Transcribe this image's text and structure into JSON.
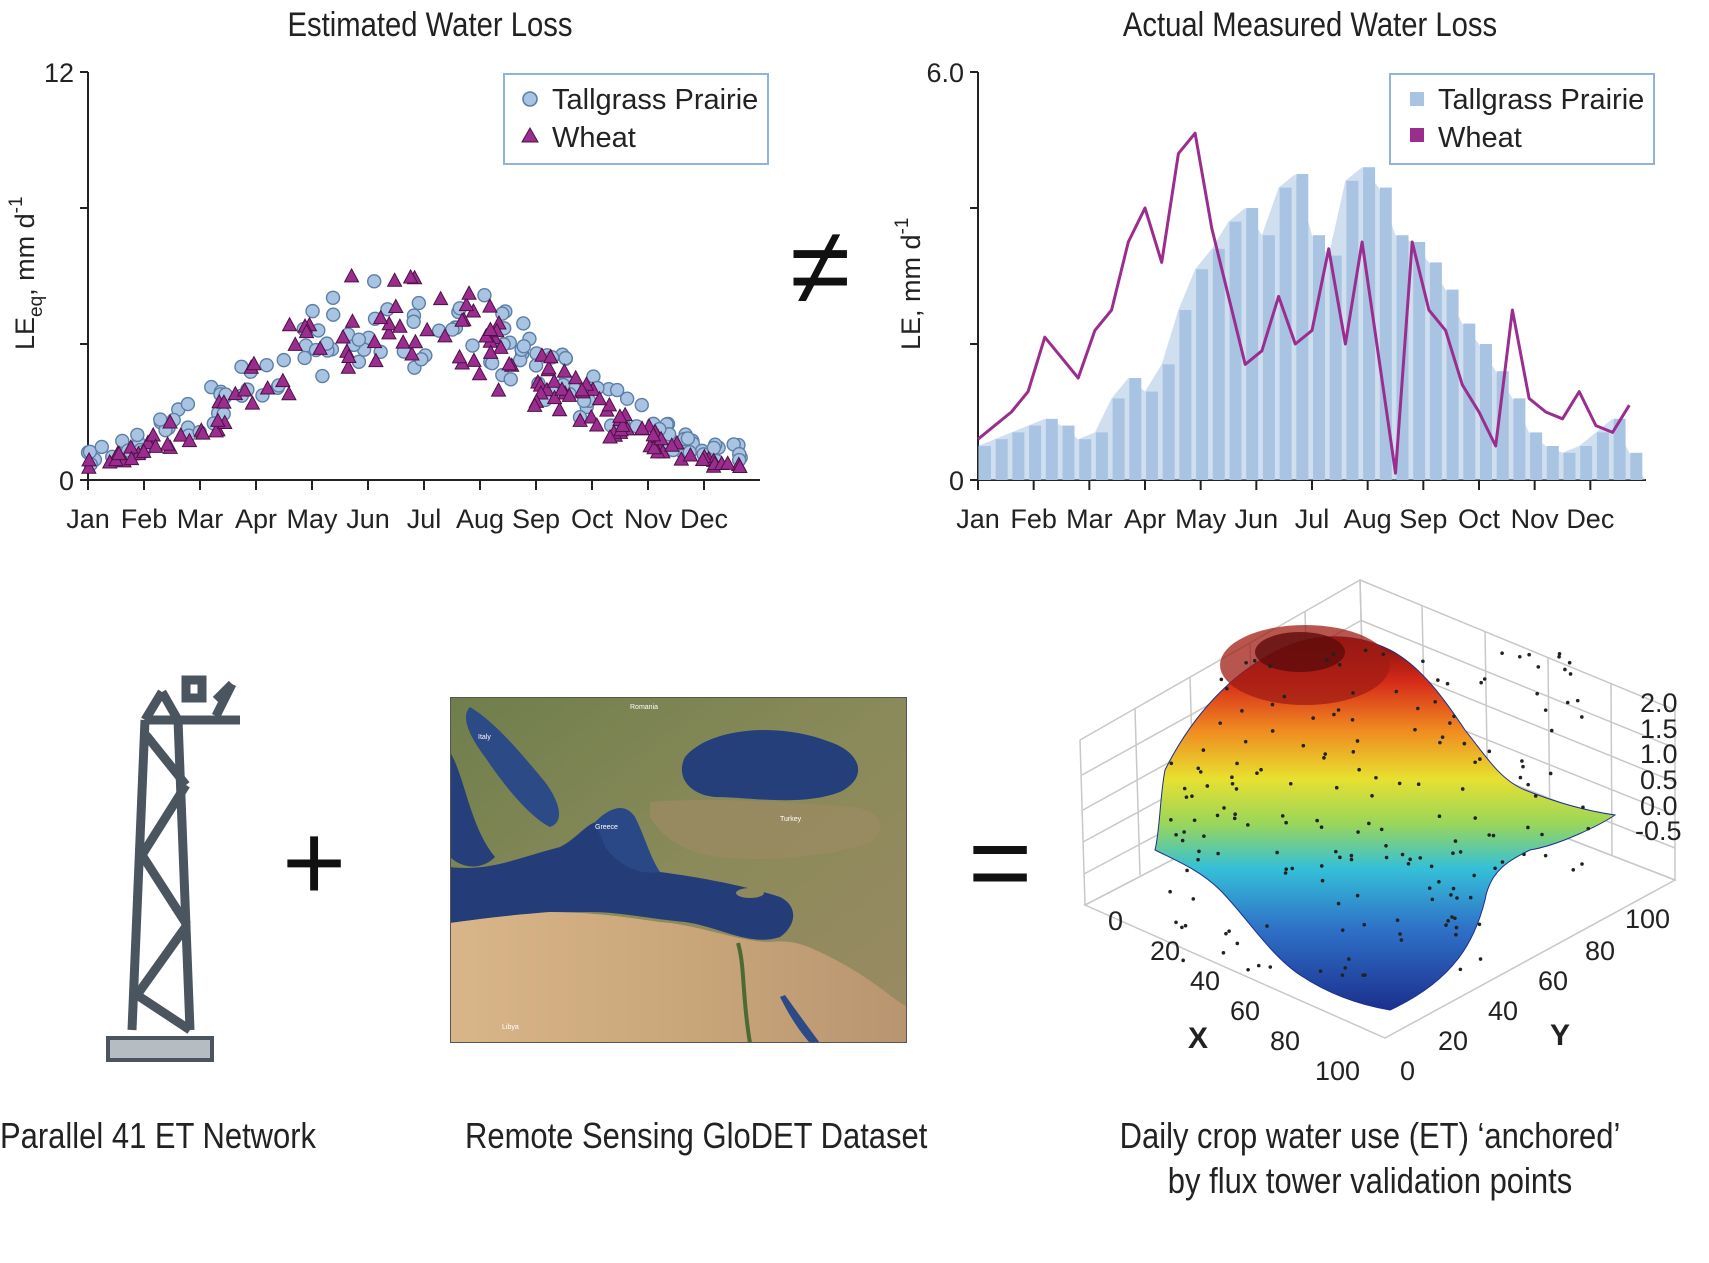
{
  "left_chart": {
    "title": "Estimated Water Loss",
    "ylabel_main": "LE",
    "ylabel_sub": "eq",
    "ylabel_rest": ", mm d",
    "ylabel_sup": "-1",
    "y_ticks": [
      "0",
      "12"
    ],
    "x_ticks": [
      "Jan",
      "Feb",
      "Mar",
      "Apr",
      "May",
      "Jun",
      "Jul",
      "Aug",
      "Sep",
      "Oct",
      "Nov",
      "Dec"
    ],
    "legend": [
      "Tallgrass Prairie",
      "Wheat"
    ]
  },
  "right_chart": {
    "title": "Actual Measured Water Loss",
    "ylabel": "LE, mm d",
    "ylabel_sup": "-1",
    "y_ticks": [
      "0",
      "6.0"
    ],
    "x_ticks": [
      "Jan",
      "Feb",
      "Mar",
      "Apr",
      "May",
      "Jun",
      "Jul",
      "Aug",
      "Sep",
      "Oct",
      "Nov",
      "Dec"
    ],
    "legend": [
      "Tallgrass Prairie",
      "Wheat"
    ]
  },
  "operators": {
    "not_equal": "≠",
    "plus": "+",
    "equals": "="
  },
  "captions": {
    "tower": "Parallel 41 ET Network",
    "satellite": "Remote Sensing GloDET Dataset",
    "surface_line1": "Daily crop water use (ET) ‘anchored’",
    "surface_line2": "by flux tower validation points"
  },
  "map_labels": [
    "Romania",
    "Italy",
    "Greece",
    "Turkey",
    "Libya"
  ],
  "surface_plot": {
    "x_label": "X",
    "y_label": "Y",
    "x_ticks": [
      "0",
      "20",
      "40",
      "60",
      "80",
      "100"
    ],
    "y_ticks": [
      "0",
      "20",
      "40",
      "60",
      "80",
      "100"
    ],
    "z_ticks": [
      "2.0",
      "1.5",
      "1.0",
      "0.5",
      "0.0",
      "-0.5"
    ]
  },
  "colors": {
    "prairie": "#a9c4e2",
    "prairie_edge": "#5d7fa6",
    "wheat": "#9b2d8f",
    "legend_border": "#8fb3d9"
  },
  "chart_data": [
    {
      "type": "scatter",
      "title": "Estimated Water Loss",
      "xlabel": "",
      "ylabel": "LEeq, mm d-1",
      "ylim": [
        0,
        12
      ],
      "x_categories": [
        "Jan",
        "Feb",
        "Mar",
        "Apr",
        "May",
        "Jun",
        "Jul",
        "Aug",
        "Sep",
        "Oct",
        "Nov",
        "Dec"
      ],
      "legend_position": "top-right",
      "series": [
        {
          "name": "Tallgrass Prairie",
          "marker": "circle",
          "monthly_envelope": [
            0.8,
            1.5,
            2.4,
            3.6,
            5.0,
            6.0,
            5.8,
            5.4,
            4.3,
            3.0,
            2.0,
            1.0
          ]
        },
        {
          "name": "Wheat",
          "marker": "triangle",
          "monthly_envelope": [
            0.6,
            1.2,
            2.2,
            3.5,
            5.2,
            6.3,
            6.0,
            5.2,
            3.8,
            2.6,
            1.6,
            0.7
          ]
        }
      ]
    },
    {
      "type": "area",
      "title": "Actual Measured Water Loss",
      "xlabel": "",
      "ylabel": "LE, mm d-1",
      "ylim": [
        0,
        6.0
      ],
      "x_categories": [
        "Jan",
        "Feb",
        "Mar",
        "Apr",
        "May",
        "Jun",
        "Jul",
        "Aug",
        "Sep",
        "Oct",
        "Nov",
        "Dec"
      ],
      "legend_position": "top-right",
      "series": [
        {
          "name": "Tallgrass Prairie",
          "style": "bars",
          "x": [
            0.0,
            0.3,
            0.6,
            0.9,
            1.2,
            1.5,
            1.8,
            2.1,
            2.4,
            2.7,
            3.0,
            3.3,
            3.6,
            3.9,
            4.2,
            4.5,
            4.8,
            5.1,
            5.4,
            5.7,
            6.0,
            6.3,
            6.6,
            6.9,
            7.2,
            7.5,
            7.8,
            8.1,
            8.4,
            8.7,
            9.0,
            9.3,
            9.6,
            9.9,
            10.2,
            10.5,
            10.8,
            11.1,
            11.4,
            11.7
          ],
          "y": [
            0.5,
            0.6,
            0.7,
            0.8,
            0.9,
            0.8,
            0.6,
            0.7,
            1.2,
            1.5,
            1.3,
            1.7,
            2.5,
            3.1,
            3.4,
            3.8,
            4.0,
            3.6,
            4.3,
            4.5,
            3.6,
            3.3,
            4.4,
            4.6,
            4.3,
            3.6,
            3.5,
            3.2,
            2.8,
            2.3,
            2.0,
            1.6,
            1.2,
            0.7,
            0.5,
            0.4,
            0.5,
            0.7,
            0.9,
            0.4
          ]
        },
        {
          "name": "Wheat",
          "style": "line",
          "x": [
            0.0,
            0.3,
            0.6,
            0.9,
            1.2,
            1.5,
            1.8,
            2.1,
            2.4,
            2.7,
            3.0,
            3.3,
            3.6,
            3.9,
            4.2,
            4.5,
            4.8,
            5.1,
            5.4,
            5.7,
            6.0,
            6.3,
            6.6,
            6.9,
            7.2,
            7.5,
            7.8,
            8.1,
            8.4,
            8.7,
            9.0,
            9.3,
            9.6,
            9.9,
            10.2,
            10.5,
            10.8,
            11.1,
            11.4,
            11.7
          ],
          "y": [
            0.6,
            0.8,
            1.0,
            1.3,
            2.1,
            1.8,
            1.5,
            2.2,
            2.5,
            3.5,
            4.0,
            3.2,
            4.8,
            5.1,
            3.7,
            2.7,
            1.7,
            1.9,
            2.7,
            2.0,
            2.2,
            3.4,
            2.0,
            3.5,
            1.8,
            0.1,
            3.5,
            2.5,
            2.2,
            1.4,
            1.0,
            0.5,
            2.5,
            1.2,
            1.0,
            0.9,
            1.3,
            0.8,
            0.7,
            1.1
          ]
        }
      ]
    }
  ]
}
